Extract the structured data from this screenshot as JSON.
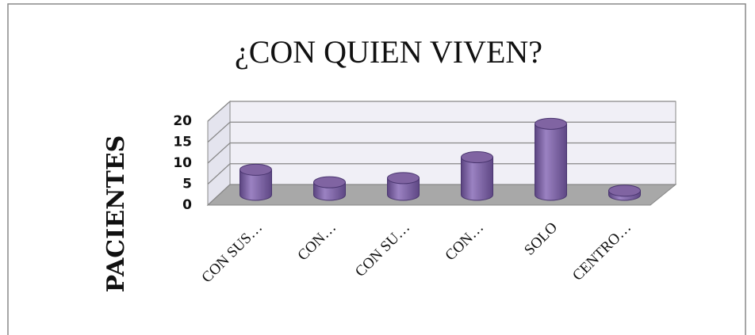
{
  "chart_data": {
    "type": "bar",
    "title": "¿CON QUIEN VIVEN?",
    "y_label": "PACIENTES",
    "categories": [
      "CON SUS…",
      "CON…",
      "CON SU…",
      "CON…",
      "SOLO",
      "CENTRO…"
    ],
    "values": [
      6,
      3,
      4,
      9,
      17,
      1
    ],
    "color": "#8064a2",
    "ylim": [
      0,
      20
    ],
    "yticks": [
      0,
      5,
      10,
      15,
      20
    ],
    "grid": true
  }
}
